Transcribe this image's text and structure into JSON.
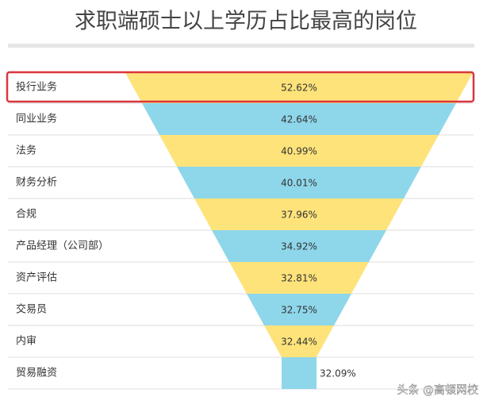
{
  "chart_data": {
    "type": "funnel",
    "title": "求职端硕士以上学历占比最高的岗位",
    "categories": [
      "投行业务",
      "同业业务",
      "法务",
      "财务分析",
      "合规",
      "产品经理（公司部）",
      "资产评估",
      "交易员",
      "内审",
      "贸易融资"
    ],
    "values": [
      52.62,
      42.64,
      40.99,
      40.01,
      37.96,
      34.92,
      32.81,
      32.75,
      32.44,
      32.09
    ],
    "value_labels": [
      "52.62%",
      "42.64%",
      "40.99%",
      "40.01%",
      "37.96%",
      "34.92%",
      "32.81%",
      "32.75%",
      "32.44%",
      "32.09%"
    ],
    "colors": [
      "#fde37a",
      "#8ed6ea"
    ],
    "highlight": 0,
    "highlight_color": "#d9363e"
  },
  "watermark": "头条 @高顿网校"
}
